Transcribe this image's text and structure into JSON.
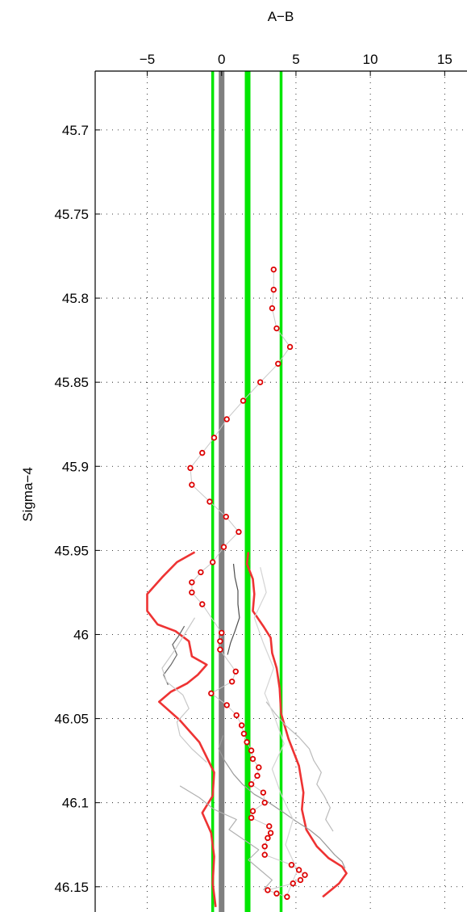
{
  "chart_data": {
    "type": "line",
    "xlabel": "A−B",
    "ylabel": "Sigma−4",
    "xlim": [
      -8.5,
      16.5
    ],
    "ylim": [
      46.165,
      45.665
    ],
    "y_reversed": true,
    "x_axis_position": "top",
    "grid": true,
    "x_ticks": [
      -5,
      0,
      5,
      10,
      15
    ],
    "x_tick_labels": [
      "−5",
      "0",
      "5",
      "10",
      "15"
    ],
    "y_ticks": [
      45.7,
      45.75,
      45.8,
      45.85,
      45.9,
      45.95,
      46.0,
      46.05,
      46.1,
      46.15
    ],
    "y_tick_labels": [
      "45.7",
      "45.75",
      "45.8",
      "45.85",
      "45.9",
      "45.95",
      "46",
      "46.05",
      "46.1",
      "46.15"
    ],
    "colors": {
      "reference_gray": "#808080",
      "reference_green": "#00e600",
      "red": "#ee3333",
      "points": "#dd0000",
      "point_fill": "#ffffff"
    },
    "reference_lines": [
      {
        "x": 0,
        "color": "#808080",
        "width": "thick"
      },
      {
        "x": -0.6,
        "color": "#00e600",
        "width": "medium"
      },
      {
        "x": 1.75,
        "color": "#00e600",
        "width": "thick"
      },
      {
        "x": 4.0,
        "color": "#00e600",
        "width": "medium"
      }
    ],
    "series": [
      {
        "role": "profile-points",
        "style": "markers",
        "color": "#dd0000",
        "x": [
          3.5,
          3.5,
          3.4,
          3.7,
          4.6,
          3.8,
          2.6,
          1.45,
          0.35,
          -0.5,
          -1.3,
          -2.1,
          -2.0,
          -0.8,
          0.3,
          1.15,
          0.15,
          -0.6,
          -1.4,
          -2.0,
          -2.0,
          -1.3,
          0.0,
          -0.1,
          -0.1,
          0.95,
          0.7,
          -0.7,
          0.35,
          1.0,
          1.35,
          1.5,
          1.7,
          2.0,
          2.1,
          2.5,
          2.4,
          2.0,
          2.8,
          2.9,
          2.1,
          2.0,
          3.2,
          3.3,
          3.1,
          2.9,
          2.9,
          4.7,
          5.2,
          5.6,
          5.3,
          4.8,
          3.1,
          3.7,
          4.4
        ],
        "y": [
          45.783,
          45.795,
          45.806,
          45.818,
          45.829,
          45.839,
          45.85,
          45.861,
          45.872,
          45.883,
          45.892,
          45.901,
          45.911,
          45.921,
          45.93,
          45.939,
          45.948,
          45.957,
          45.963,
          45.969,
          45.975,
          45.982,
          45.999,
          46.004,
          46.009,
          46.022,
          46.028,
          46.035,
          46.042,
          46.048,
          46.054,
          46.059,
          46.064,
          46.069,
          46.074,
          46.079,
          46.084,
          46.089,
          46.094,
          46.1,
          46.105,
          46.109,
          46.114,
          46.118,
          46.121,
          46.126,
          46.131,
          46.137,
          46.14,
          46.143,
          46.146,
          46.148,
          46.152,
          46.154,
          46.156
        ]
      },
      {
        "role": "red-left-envelope",
        "style": "line",
        "color": "#ee3333",
        "x": [
          -1.8,
          -3.0,
          -4.0,
          -5.0,
          -5.0,
          -4.3,
          -3.1,
          -2.2,
          -2.0,
          -1.0,
          -1.6,
          -2.3,
          -3.4,
          -4.2,
          -2.8,
          -1.5,
          -0.5,
          -0.6,
          -1.3,
          -0.7,
          -0.5,
          -0.6,
          -0.4
        ],
        "y": [
          45.951,
          45.957,
          45.966,
          45.976,
          45.986,
          45.994,
          45.998,
          46.004,
          46.013,
          46.018,
          46.024,
          46.029,
          46.034,
          46.04,
          46.051,
          46.064,
          46.082,
          46.096,
          46.106,
          46.118,
          46.132,
          46.148,
          46.162
        ]
      },
      {
        "role": "red-right-envelope",
        "style": "line",
        "color": "#ee3333",
        "x": [
          1.8,
          1.7,
          2.1,
          2.2,
          2.1,
          2.8,
          3.3,
          3.4,
          3.7,
          3.9,
          4.0,
          4.5,
          5.2,
          5.5,
          5.4,
          5.7,
          6.4,
          7.2,
          8.1,
          8.4,
          7.9,
          6.8
        ],
        "y": [
          45.951,
          45.958,
          45.967,
          45.976,
          45.986,
          45.995,
          46.002,
          46.011,
          46.02,
          46.032,
          46.047,
          46.062,
          46.078,
          46.094,
          46.104,
          46.116,
          46.126,
          46.133,
          46.138,
          46.142,
          46.148,
          46.156
        ]
      },
      {
        "role": "background-profile-1",
        "style": "line",
        "color": "#4d4d4d",
        "x": [
          0.8,
          0.9,
          1.1,
          1.1,
          1.2,
          0.9,
          0.6,
          0.4
        ],
        "y": [
          45.958,
          45.966,
          45.974,
          45.982,
          45.99,
          45.998,
          46.005,
          46.012
        ]
      },
      {
        "role": "background-profile-2",
        "style": "line",
        "color": "#666666",
        "x": [
          -2.5,
          -2.9,
          -3.3,
          -3.0,
          -3.4,
          -3.9,
          -3.6
        ],
        "y": [
          45.995,
          46.001,
          46.006,
          46.012,
          46.018,
          46.024,
          46.03
        ]
      },
      {
        "role": "background-profile-3",
        "style": "line",
        "color": "#999999",
        "x": [
          0.1,
          -0.2,
          0.2,
          0.8,
          1.4,
          2.2,
          3.2,
          4.2,
          5.0,
          5.9,
          6.6,
          7.1,
          7.6,
          8.1,
          8.3
        ],
        "y": [
          46.06,
          46.068,
          46.075,
          46.083,
          46.089,
          46.095,
          46.1,
          46.106,
          46.111,
          46.116,
          46.121,
          46.126,
          46.131,
          46.135,
          46.139
        ]
      },
      {
        "role": "background-profile-4",
        "style": "line",
        "color": "#bbbbbb",
        "x": [
          3.0,
          3.6,
          4.3,
          5.2,
          5.9,
          6.2,
          6.7,
          6.4,
          6.9,
          7.3,
          7.0,
          7.5
        ],
        "y": [
          46.04,
          46.047,
          46.054,
          46.061,
          46.068,
          46.075,
          46.082,
          46.089,
          46.096,
          46.103,
          46.11,
          46.117
        ]
      },
      {
        "role": "background-profile-5",
        "style": "line",
        "color": "#c8c8c8",
        "x": [
          -1.8,
          -2.5,
          -3.2,
          -4.0,
          -3.7,
          -2.6,
          -2.2,
          -3.0,
          -2.8,
          -2.0,
          -1.0
        ],
        "y": [
          45.99,
          46.0,
          46.01,
          46.02,
          46.028,
          46.036,
          46.044,
          46.052,
          46.06,
          46.068,
          46.076
        ]
      },
      {
        "role": "background-profile-6",
        "style": "line",
        "color": "#d4d4d4",
        "x": [
          2.6,
          3.0,
          2.2,
          2.8,
          3.5,
          2.9,
          3.6,
          4.2,
          3.4,
          4.0,
          4.8,
          4.3,
          5.1,
          4.4
        ],
        "y": [
          45.96,
          45.975,
          45.99,
          46.005,
          46.02,
          46.035,
          46.05,
          46.065,
          46.08,
          46.095,
          46.11,
          46.125,
          46.14,
          46.155
        ]
      },
      {
        "role": "background-profile-7",
        "style": "line",
        "color": "#b0b0b0",
        "x": [
          -2.8,
          -1.5,
          -0.5,
          1.0,
          0.5,
          1.5,
          2.5,
          1.8,
          2.6,
          3.4,
          2.8
        ],
        "y": [
          46.09,
          46.097,
          46.104,
          46.11,
          46.116,
          46.122,
          46.128,
          46.134,
          46.14,
          46.146,
          46.152
        ]
      }
    ]
  }
}
